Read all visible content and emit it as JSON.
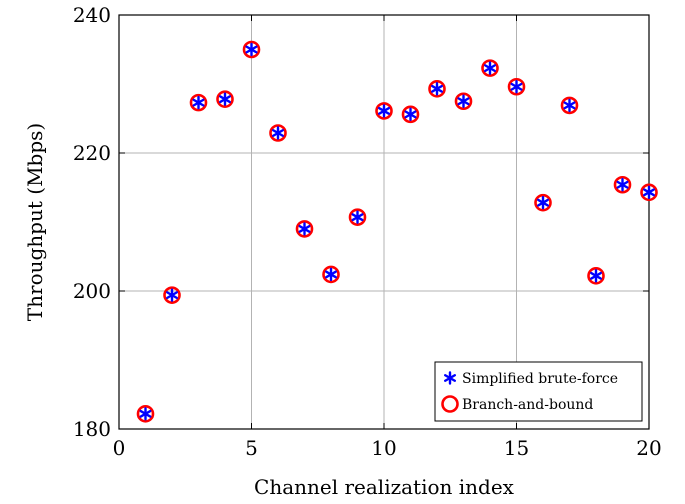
{
  "chart_data": {
    "type": "scatter",
    "xlabel": "Channel realization index",
    "ylabel": "Throughput (Mbps)",
    "xlim": [
      0,
      20
    ],
    "ylim": [
      180,
      240
    ],
    "xticks": [
      0,
      5,
      10,
      15,
      20
    ],
    "yticks": [
      180,
      200,
      220,
      240
    ],
    "grid": true,
    "legend_position": "bottom-right",
    "x": [
      1,
      2,
      3,
      4,
      5,
      6,
      7,
      8,
      9,
      10,
      11,
      12,
      13,
      14,
      15,
      16,
      17,
      18,
      19,
      20
    ],
    "series": [
      {
        "name": "Simplified brute-force",
        "marker": "asterisk",
        "color": "#0000ff",
        "values": [
          182.2,
          199.4,
          227.3,
          227.8,
          235.0,
          222.9,
          209.0,
          202.4,
          210.7,
          226.1,
          225.6,
          229.3,
          227.5,
          232.3,
          229.6,
          212.8,
          226.9,
          202.2,
          215.4,
          214.3
        ]
      },
      {
        "name": "Branch-and-bound",
        "marker": "circle",
        "color": "#ff0000",
        "values": [
          182.2,
          199.4,
          227.3,
          227.8,
          235.0,
          222.9,
          209.0,
          202.4,
          210.7,
          226.1,
          225.6,
          229.3,
          227.5,
          232.3,
          229.6,
          212.8,
          226.9,
          202.2,
          215.4,
          214.3
        ]
      }
    ]
  }
}
